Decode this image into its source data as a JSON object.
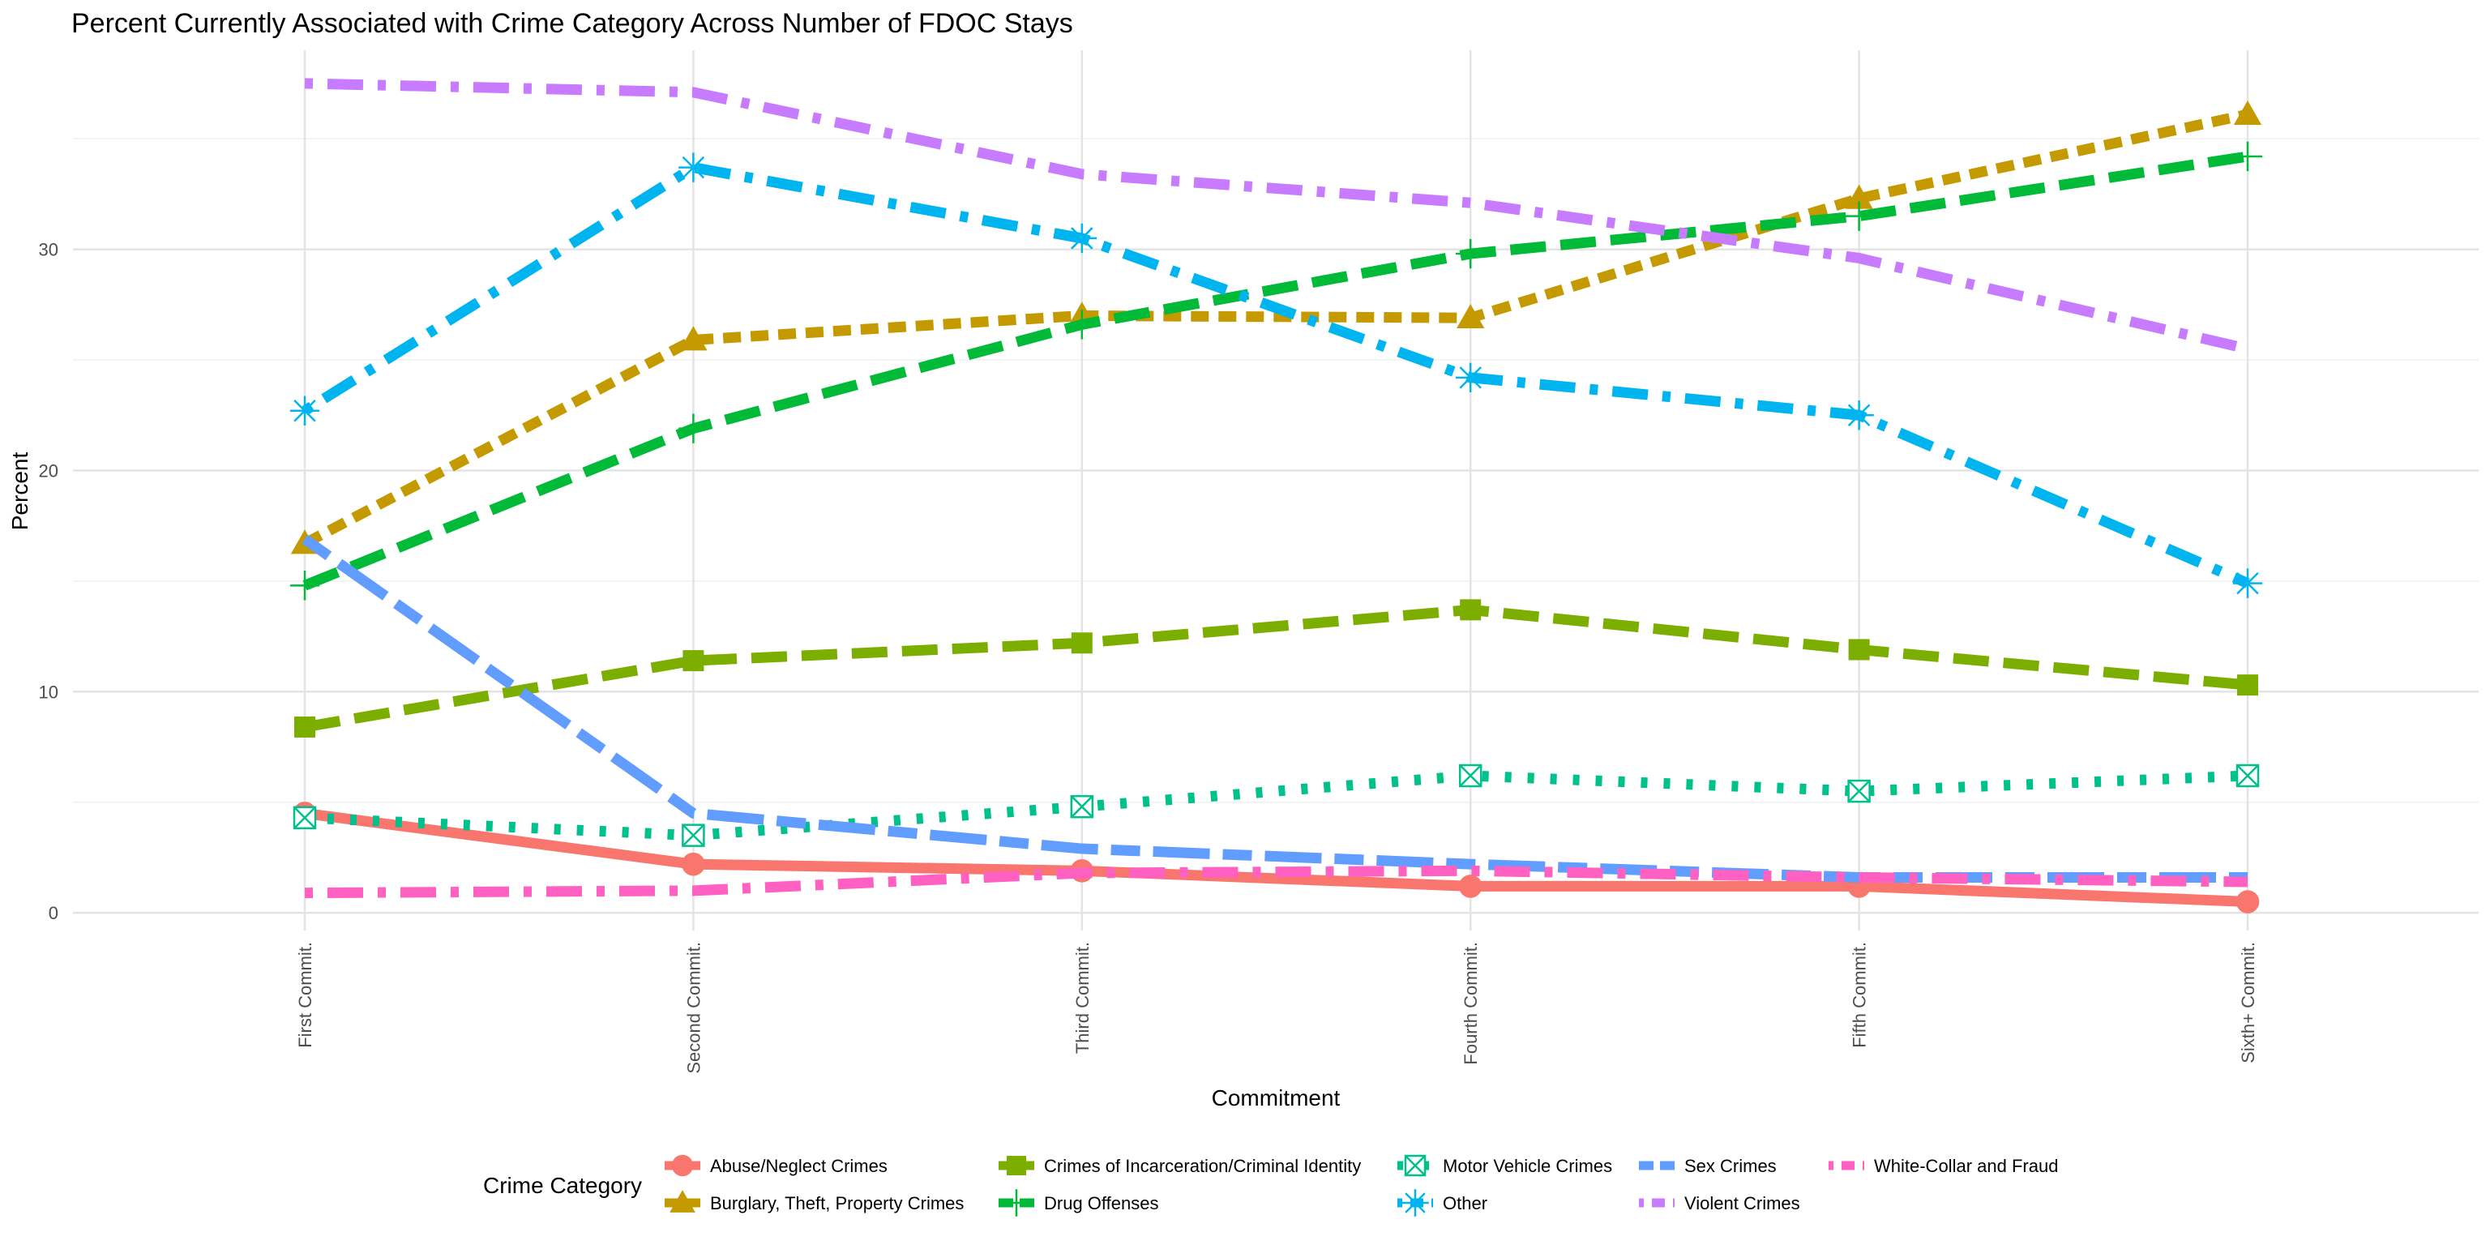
{
  "chart_data": {
    "type": "line",
    "title": "Percent Currently Associated with Crime Category Across Number of FDOC Stays",
    "xlabel": "Commitment",
    "ylabel": "Percent",
    "categories": [
      "First Commit.",
      "Second Commit.",
      "Third Commit.",
      "Fourth Commit.",
      "Fifth Commit.",
      "Sixth+ Commit."
    ],
    "ylim": [
      -0.8,
      39
    ],
    "yticks": [
      0,
      10,
      20,
      30
    ],
    "grid": true,
    "legend": {
      "title": "Crime Category",
      "placement": "bottom"
    },
    "series": [
      {
        "name": "Abuse/Neglect Crimes",
        "color": "#F8766D",
        "dash": "solid",
        "marker": "circle",
        "values": [
          4.5,
          2.2,
          1.9,
          1.2,
          1.2,
          0.5
        ]
      },
      {
        "name": "Burglary, Theft, Property Crimes",
        "color": "#C49A00",
        "dash": "dashed",
        "marker": "triangle",
        "values": [
          16.7,
          25.9,
          27.0,
          26.9,
          32.3,
          36.1
        ]
      },
      {
        "name": "Crimes of Incarceration/Criminal Identity",
        "color": "#7CAE00",
        "dash": "longdash",
        "marker": "square",
        "values": [
          8.4,
          11.4,
          12.2,
          13.7,
          11.9,
          10.3
        ]
      },
      {
        "name": "Drug Offenses",
        "color": "#00BA38",
        "dash": "longdash",
        "marker": "plus",
        "values": [
          14.8,
          21.9,
          26.6,
          29.8,
          31.5,
          34.2
        ]
      },
      {
        "name": "Motor Vehicle Crimes",
        "color": "#00C08B",
        "dash": "dotted",
        "marker": "boxcross",
        "values": [
          4.3,
          3.5,
          4.8,
          6.2,
          5.5,
          6.2
        ]
      },
      {
        "name": "Other",
        "color": "#00B4F0",
        "dash": "dotdash",
        "marker": "star",
        "values": [
          22.7,
          33.7,
          30.5,
          24.2,
          22.5,
          14.9
        ]
      },
      {
        "name": "Sex Crimes",
        "color": "#619CFF",
        "dash": "twodash",
        "marker": "none",
        "values": [
          16.9,
          4.5,
          2.9,
          2.2,
          1.6,
          1.6
        ]
      },
      {
        "name": "Violent Crimes",
        "color": "#C77CFF",
        "dash": "dotdash",
        "marker": "none",
        "values": [
          37.5,
          37.1,
          33.4,
          32.1,
          29.6,
          25.5
        ]
      },
      {
        "name": "White-Collar and Fraud",
        "color": "#FF61C3",
        "dash": "dotdash",
        "marker": "none",
        "values": [
          0.9,
          1.0,
          1.8,
          1.9,
          1.6,
          1.4
        ]
      }
    ]
  }
}
